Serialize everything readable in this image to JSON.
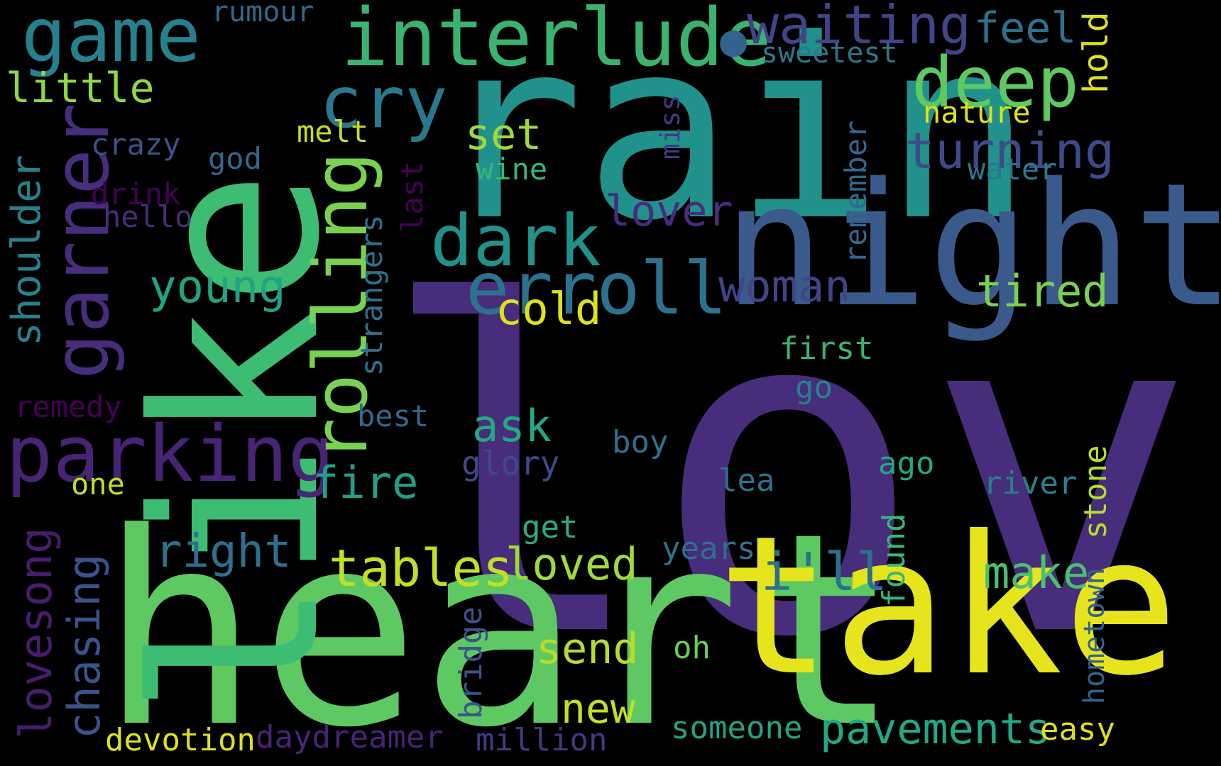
{
  "words": [
    {
      "id": "love",
      "text": "love",
      "color": "#472d7b"
    },
    {
      "id": "heart",
      "text": "heart",
      "color": "#5ec962"
    },
    {
      "id": "rain",
      "text": "rain",
      "color": "#21918c"
    },
    {
      "id": "like",
      "text": "like",
      "color": "#3dbc74"
    },
    {
      "id": "take",
      "text": "take",
      "color": "#e6e51d"
    },
    {
      "id": "night",
      "text": "night",
      "color": "#3b5a8c"
    },
    {
      "id": "interlude",
      "text": "interlude",
      "color": "#3ab370"
    },
    {
      "id": "game",
      "text": "game",
      "color": "#26818e"
    },
    {
      "id": "garner",
      "text": "garner",
      "color": "#472d7b"
    },
    {
      "id": "parking",
      "text": "parking",
      "color": "#482475"
    },
    {
      "id": "rolling",
      "text": "rolling",
      "color": "#7ad151"
    },
    {
      "id": "erroll",
      "text": "erroll",
      "color": "#2c728e"
    },
    {
      "id": "dark",
      "text": "dark",
      "color": "#21918c"
    },
    {
      "id": "cry",
      "text": "cry",
      "color": "#2a788e"
    },
    {
      "id": "deep",
      "text": "deep",
      "color": "#5ec962"
    },
    {
      "id": "waiting",
      "text": "waiting",
      "color": "#414487"
    },
    {
      "id": "turning",
      "text": "turning",
      "color": "#3e4a89"
    },
    {
      "id": "dot",
      "text": "•",
      "color": "#33638d"
    },
    {
      "id": "feel",
      "text": "feel",
      "color": "#2d708e"
    },
    {
      "id": "rumour",
      "text": "rumour",
      "color": "#31688e"
    },
    {
      "id": "sweetest",
      "text": "sweetest",
      "color": "#2a788e"
    },
    {
      "id": "little",
      "text": "little",
      "color": "#8fd744"
    },
    {
      "id": "hold",
      "text": "hold",
      "color": "#dde318"
    },
    {
      "id": "nature",
      "text": "nature",
      "color": "#dde318"
    },
    {
      "id": "melt",
      "text": "melt",
      "color": "#c2df23"
    },
    {
      "id": "set",
      "text": "set",
      "color": "#9fda3a"
    },
    {
      "id": "miss",
      "text": "miss",
      "color": "#443983"
    },
    {
      "id": "crazy",
      "text": "crazy",
      "color": "#3b528b"
    },
    {
      "id": "god",
      "text": "god",
      "color": "#31688e"
    },
    {
      "id": "wine",
      "text": "wine",
      "color": "#35b779"
    },
    {
      "id": "water",
      "text": "water",
      "color": "#2a788e"
    },
    {
      "id": "drink",
      "text": "drink",
      "color": "#440154"
    },
    {
      "id": "hello",
      "text": "hello",
      "color": "#472d7b"
    },
    {
      "id": "shoulder",
      "text": "shoulder",
      "color": "#26818e"
    },
    {
      "id": "last",
      "text": "last",
      "color": "#440154"
    },
    {
      "id": "strangers",
      "text": "strangers",
      "color": "#2c728e"
    },
    {
      "id": "remember",
      "text": "remember",
      "color": "#31688e"
    },
    {
      "id": "lover",
      "text": "lover",
      "color": "#472d7b"
    },
    {
      "id": "young",
      "text": "young",
      "color": "#20a486"
    },
    {
      "id": "woman",
      "text": "woman",
      "color": "#414487"
    },
    {
      "id": "tired",
      "text": "tired",
      "color": "#7ad151"
    },
    {
      "id": "cold",
      "text": "cold",
      "color": "#dde318"
    },
    {
      "id": "first",
      "text": "first",
      "color": "#3ab370"
    },
    {
      "id": "go",
      "text": "go",
      "color": "#26818e"
    },
    {
      "id": "remedy",
      "text": "remedy",
      "color": "#440154"
    },
    {
      "id": "best",
      "text": "best",
      "color": "#31688e"
    },
    {
      "id": "ask",
      "text": "ask",
      "color": "#22a884"
    },
    {
      "id": "boy",
      "text": "boy",
      "color": "#2c728e"
    },
    {
      "id": "one",
      "text": "one",
      "color": "#c2df23"
    },
    {
      "id": "fire",
      "text": "fire",
      "color": "#1fa187"
    },
    {
      "id": "glory",
      "text": "glory",
      "color": "#3e4a89"
    },
    {
      "id": "lea",
      "text": "lea",
      "color": "#2c728e"
    },
    {
      "id": "ago",
      "text": "ago",
      "color": "#22a884"
    },
    {
      "id": "river",
      "text": "river",
      "color": "#26818e"
    },
    {
      "id": "stone",
      "text": "stone",
      "color": "#b5de2b"
    },
    {
      "id": "lovesong",
      "text": "lovesong",
      "color": "#481c6e"
    },
    {
      "id": "chasing",
      "text": "chasing",
      "color": "#3b528b"
    },
    {
      "id": "right",
      "text": "right",
      "color": "#2d708e"
    },
    {
      "id": "get",
      "text": "get",
      "color": "#28ae80"
    },
    {
      "id": "years",
      "text": "years",
      "color": "#2c728e"
    },
    {
      "id": "found",
      "text": "found",
      "color": "#35b779"
    },
    {
      "id": "hometown",
      "text": "hometown",
      "color": "#33638d"
    },
    {
      "id": "tables",
      "text": "tables",
      "color": "#c2df23"
    },
    {
      "id": "loved",
      "text": "loved",
      "color": "#a0da39"
    },
    {
      "id": "ill",
      "text": "i'll",
      "color": "#2d708e"
    },
    {
      "id": "make",
      "text": "make",
      "color": "#4ac16d"
    },
    {
      "id": "send",
      "text": "send",
      "color": "#b5de2b"
    },
    {
      "id": "oh",
      "text": "oh",
      "color": "#6ccd5a"
    },
    {
      "id": "bridge",
      "text": "bridge",
      "color": "#3b528b"
    },
    {
      "id": "new",
      "text": "new",
      "color": "#c2df23"
    },
    {
      "id": "pavements",
      "text": "pavements",
      "color": "#22a884"
    },
    {
      "id": "easy",
      "text": "easy",
      "color": "#dde318"
    },
    {
      "id": "someone",
      "text": "someone",
      "color": "#20a486"
    },
    {
      "id": "million",
      "text": "million",
      "color": "#443983"
    },
    {
      "id": "daydreamer",
      "text": "daydreamer",
      "color": "#482475"
    },
    {
      "id": "devotion",
      "text": "devotion",
      "color": "#dde318"
    }
  ]
}
